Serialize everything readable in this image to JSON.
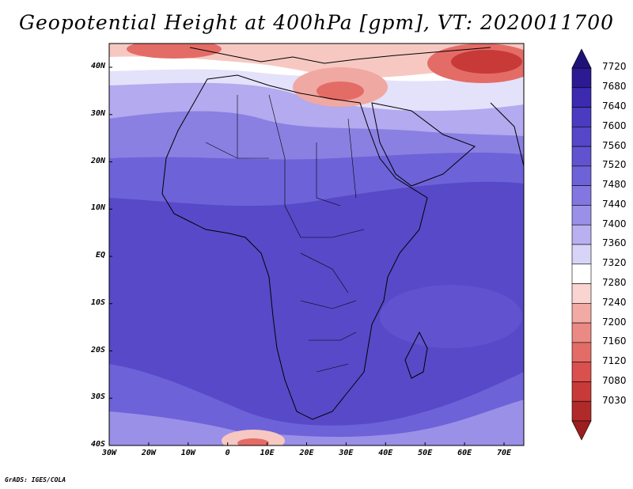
{
  "title": "Geopotential Height at 400hPa [gpm], VT: 2020011700",
  "credit": "GrADS: IGES/COLA",
  "lat_ticks": [
    "40N",
    "30N",
    "20N",
    "10N",
    "EQ",
    "10S",
    "20S",
    "30S",
    "40S"
  ],
  "lon_ticks": [
    "30W",
    "20W",
    "10W",
    "0",
    "10E",
    "20E",
    "30E",
    "40E",
    "50E",
    "60E",
    "70E"
  ],
  "colorbar": {
    "labels": [
      "7720",
      "7680",
      "7640",
      "7600",
      "7560",
      "7520",
      "7480",
      "7440",
      "7400",
      "7360",
      "7320",
      "7280",
      "7240",
      "7200",
      "7160",
      "7120",
      "7080",
      "7030"
    ],
    "colors": [
      "#2b1a92",
      "#3c2ab0",
      "#4a3bc0",
      "#5646c8",
      "#6152d0",
      "#6e62d8",
      "#8276e0",
      "#9a90e8",
      "#b8b0f0",
      "#d8d4f8",
      "#ffffff",
      "#fad4d0",
      "#f2aaa4",
      "#eb8a84",
      "#e46c66",
      "#d9504c",
      "#c73a38",
      "#b02a2a"
    ]
  },
  "map_colors": {
    "deep": "#5849c8",
    "mid": "#6e62d8",
    "light": "#9a90e8",
    "pale": "#c8c2f2",
    "white": "#ffffff",
    "pink": "#f7c8c2",
    "red": "#e46c66",
    "darkred": "#c73a38"
  }
}
